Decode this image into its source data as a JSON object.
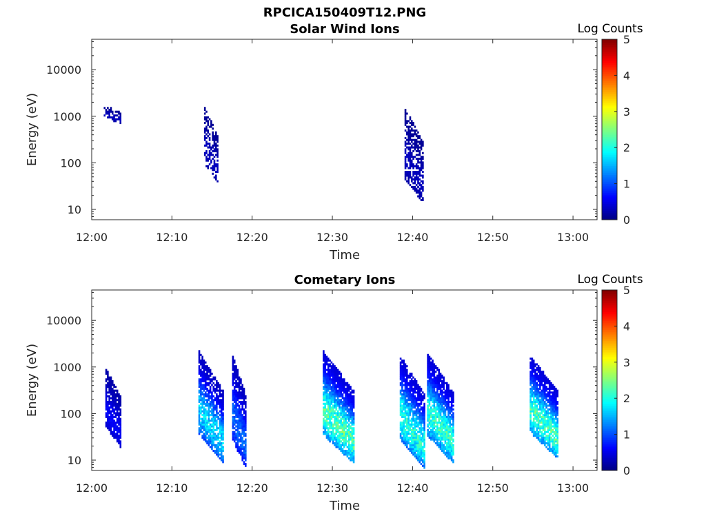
{
  "figure_title": "RPCICA150409T12.PNG",
  "colormap": "jet",
  "colorbar": {
    "label": "Log Counts",
    "min": 0,
    "max": 5,
    "ticks": [
      "0",
      "1",
      "2",
      "3",
      "4",
      "5"
    ]
  },
  "chart_data": [
    {
      "type": "heatmap",
      "title": "Solar Wind Ions",
      "xlabel": "Time",
      "ylabel": "Energy (eV)",
      "xlim": [
        "12:00",
        "13:03"
      ],
      "ylim": [
        6,
        45000
      ],
      "yscale": "log",
      "x_ticks": [
        "12:00",
        "12:10",
        "12:20",
        "12:30",
        "12:40",
        "12:50",
        "13:00"
      ],
      "y_ticks": [
        "10",
        "100",
        "1000",
        "10000"
      ],
      "legend": "none",
      "grid": false,
      "clusters": [
        {
          "start": "12:01.5",
          "end": "12:03.5",
          "emin": 680,
          "emax": 1650,
          "level_min": 0.1,
          "level_max": 0.35,
          "fill": 0.6
        },
        {
          "start": "12:14.0",
          "end": "12:15.6",
          "emin": 35,
          "emax": 1450,
          "level_min": 0.1,
          "level_max": 0.35,
          "fill": 0.55
        },
        {
          "start": "12:39.0",
          "end": "12:41.2",
          "emin": 13,
          "emax": 1450,
          "level_min": 0.1,
          "level_max": 0.35,
          "fill": 0.65
        }
      ]
    },
    {
      "type": "heatmap",
      "title": "Cometary Ions",
      "xlabel": "Time",
      "ylabel": "Energy (eV)",
      "xlim": [
        "12:00",
        "13:03"
      ],
      "ylim": [
        6,
        45000
      ],
      "yscale": "log",
      "x_ticks": [
        "12:00",
        "12:10",
        "12:20",
        "12:30",
        "12:40",
        "12:50",
        "13:00"
      ],
      "y_ticks": [
        "10",
        "100",
        "1000",
        "10000"
      ],
      "legend": "none",
      "grid": false,
      "clusters": [
        {
          "start": "12:01.7",
          "end": "12:03.5",
          "emin": 18,
          "emax": 900,
          "level_min": 0.2,
          "level_max": 0.7,
          "fill": 0.85
        },
        {
          "start": "12:13.3",
          "end": "12:16.3",
          "emin": 8,
          "emax": 2100,
          "level_min": 0.3,
          "level_max": 2.0,
          "fill": 0.8
        },
        {
          "start": "12:17.5",
          "end": "12:19.2",
          "emin": 6,
          "emax": 1700,
          "level_min": 0.3,
          "level_max": 1.3,
          "fill": 0.85
        },
        {
          "start": "12:28.8",
          "end": "12:32.6",
          "emin": 8,
          "emax": 2100,
          "level_min": 0.4,
          "level_max": 2.7,
          "fill": 0.88
        },
        {
          "start": "12:38.4",
          "end": "12:41.5",
          "emin": 6,
          "emax": 1700,
          "level_min": 0.4,
          "level_max": 2.4,
          "fill": 0.85
        },
        {
          "start": "12:41.8",
          "end": "12:45.0",
          "emin": 8,
          "emax": 1900,
          "level_min": 0.4,
          "level_max": 2.5,
          "fill": 0.85
        },
        {
          "start": "12:54.6",
          "end": "12:58.1",
          "emin": 10,
          "emax": 1700,
          "level_min": 0.4,
          "level_max": 2.6,
          "fill": 0.85
        }
      ]
    }
  ]
}
